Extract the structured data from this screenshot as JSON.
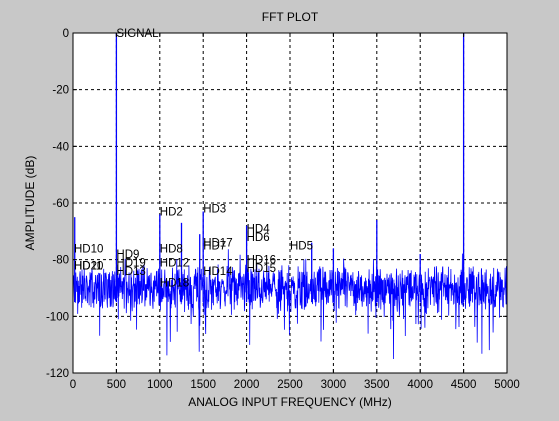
{
  "chart_data": {
    "type": "line",
    "title": "FFT PLOT",
    "xlabel": "ANALOG INPUT FREQUENCY (MHz)",
    "ylabel": "AMPLITUDE (dB)",
    "xlim": [
      0,
      5000
    ],
    "ylim": [
      -120,
      0
    ],
    "xticks": [
      0,
      500,
      1000,
      1500,
      2000,
      2500,
      3000,
      3500,
      4000,
      4500,
      5000
    ],
    "yticks": [
      0,
      -20,
      -40,
      -60,
      -80,
      -100,
      -120
    ],
    "grid": true,
    "line_color": "#0000ff",
    "noise_floor_db": -90,
    "spurs": [
      {
        "x": 20,
        "y": -65
      },
      {
        "x": 500,
        "y": 0
      },
      {
        "x": 1000,
        "y": -64
      },
      {
        "x": 1250,
        "y": -67
      },
      {
        "x": 1500,
        "y": -63
      },
      {
        "x": 1460,
        "y": -71
      },
      {
        "x": 2000,
        "y": -68
      },
      {
        "x": 2750,
        "y": -74
      },
      {
        "x": 3000,
        "y": -76
      },
      {
        "x": 3500,
        "y": -66
      },
      {
        "x": 4000,
        "y": -78
      },
      {
        "x": 4500,
        "y": 0
      }
    ],
    "annotations": [
      {
        "text": "SIGNAL",
        "x": 500,
        "y": 0
      },
      {
        "text": "HD2",
        "x": 1000,
        "y": -63
      },
      {
        "text": "HD3",
        "x": 1500,
        "y": -62
      },
      {
        "text": "HD4",
        "x": 2000,
        "y": -69
      },
      {
        "text": "HD5",
        "x": 2500,
        "y": -75
      },
      {
        "text": "HD6",
        "x": 2000,
        "y": -72
      },
      {
        "text": "HD7",
        "x": 1500,
        "y": -75
      },
      {
        "text": "HD8",
        "x": 1000,
        "y": -76
      },
      {
        "text": "HD9",
        "x": 500,
        "y": -78
      },
      {
        "text": "HD10",
        "x": 0,
        "y": -76
      },
      {
        "text": "HD11",
        "x": 0,
        "y": -82
      },
      {
        "text": "HD12",
        "x": 1000,
        "y": -81
      },
      {
        "text": "HD13",
        "x": 500,
        "y": -84
      },
      {
        "text": "HD14",
        "x": 1500,
        "y": -84
      },
      {
        "text": "HD15",
        "x": 2000,
        "y": -83
      },
      {
        "text": "HD16",
        "x": 2000,
        "y": -80
      },
      {
        "text": "HD17",
        "x": 1500,
        "y": -74
      },
      {
        "text": "HD18",
        "x": 1000,
        "y": -88
      },
      {
        "text": "HD19",
        "x": 500,
        "y": -81
      },
      {
        "text": "HD20",
        "x": 0,
        "y": -82
      }
    ]
  }
}
